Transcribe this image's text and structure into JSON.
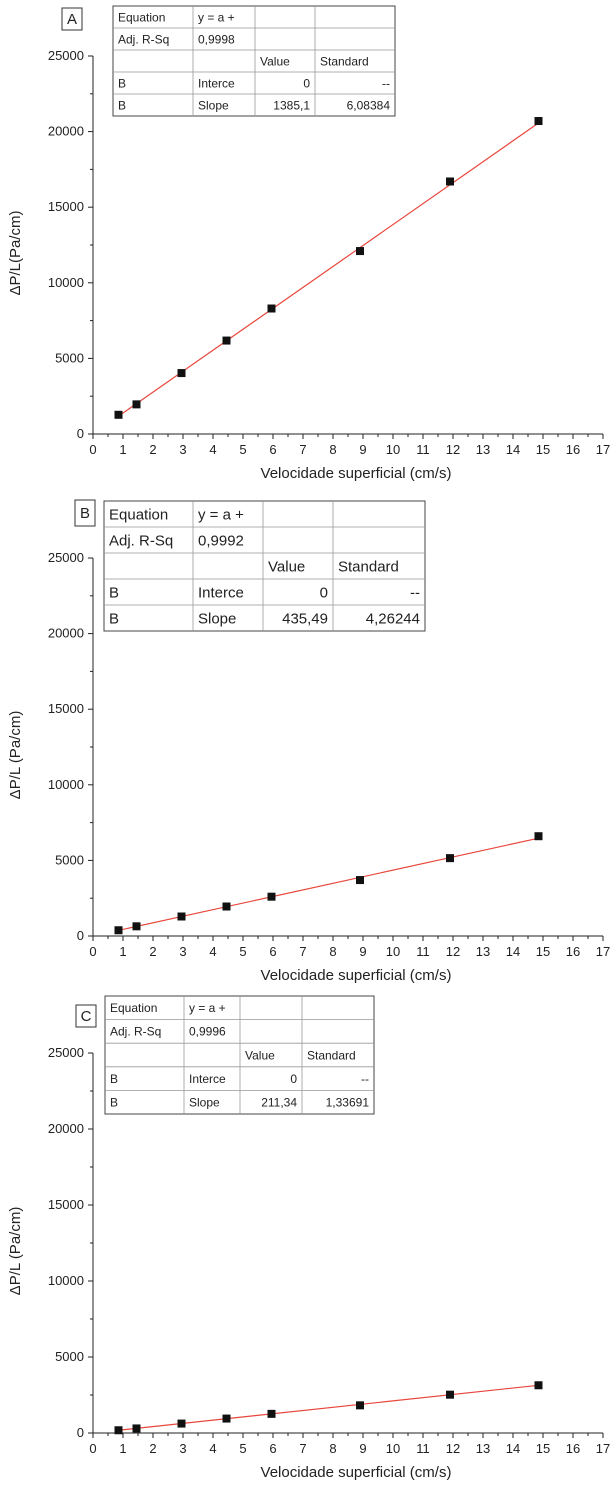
{
  "chart_data": [
    {
      "type": "scatter",
      "panel_label": "A",
      "x": [
        0.85,
        1.45,
        2.95,
        4.45,
        5.95,
        8.9,
        11.9,
        14.85
      ],
      "y": [
        1270,
        1960,
        4030,
        6180,
        8300,
        12100,
        16700,
        20700
      ],
      "fit": {
        "intercept": 0,
        "slope": 1385.1
      },
      "xlabel": "Velocidade superficial (cm/s)",
      "ylabel": "ΔP/L(Pa/cm)",
      "xlim": [
        0,
        17
      ],
      "ylim": [
        0,
        25000
      ],
      "xticks": [
        "0",
        "1",
        "2",
        "3",
        "4",
        "5",
        "6",
        "7",
        "8",
        "9",
        "10",
        "11",
        "12",
        "13",
        "14",
        "15",
        "16",
        "17"
      ],
      "yticks": [
        "0",
        "5000",
        "10000",
        "15000",
        "20000",
        "25000"
      ],
      "marker_color": "#111111",
      "fit_color": "#e8463c",
      "grid": false,
      "fit_table": [
        [
          "Equation",
          "y = a +",
          "",
          ""
        ],
        [
          "Adj. R-Sq",
          "0,9998",
          "",
          ""
        ],
        [
          "",
          "",
          "Value",
          "Standard"
        ],
        [
          "B",
          "Interce",
          "0",
          "--"
        ],
        [
          "B",
          "Slope",
          "1385,1",
          "6,08384"
        ]
      ]
    },
    {
      "type": "scatter",
      "panel_label": "B",
      "x": [
        0.85,
        1.45,
        2.95,
        4.45,
        5.95,
        8.9,
        11.9,
        14.85
      ],
      "y": [
        380,
        640,
        1290,
        1950,
        2600,
        3700,
        5150,
        6600
      ],
      "fit": {
        "intercept": 0,
        "slope": 435.49
      },
      "xlabel": "Velocidade superficial (cm/s)",
      "ylabel": "ΔP/L (Pa/cm)",
      "xlim": [
        0,
        17
      ],
      "ylim": [
        0,
        25000
      ],
      "xticks": [
        "0",
        "1",
        "2",
        "3",
        "4",
        "5",
        "6",
        "7",
        "8",
        "9",
        "10",
        "11",
        "12",
        "13",
        "14",
        "15",
        "16",
        "17"
      ],
      "yticks": [
        "0",
        "5000",
        "10000",
        "15000",
        "20000",
        "25000"
      ],
      "marker_color": "#111111",
      "fit_color": "#e8463c",
      "grid": false,
      "fit_table": [
        [
          "Equation",
          "y = a +",
          "",
          ""
        ],
        [
          "Adj. R-Sq",
          "0,9992",
          "",
          ""
        ],
        [
          "",
          "",
          "Value",
          "Standard"
        ],
        [
          "B",
          "Interce",
          "0",
          "--"
        ],
        [
          "B",
          "Slope",
          "435,49",
          "4,26244"
        ]
      ]
    },
    {
      "type": "scatter",
      "panel_label": "C",
      "x": [
        0.85,
        1.45,
        2.95,
        4.45,
        5.95,
        8.9,
        11.9,
        14.85
      ],
      "y": [
        180,
        300,
        620,
        950,
        1260,
        1820,
        2520,
        3140
      ],
      "fit": {
        "intercept": 0,
        "slope": 211.34
      },
      "xlabel": "Velocidade superficial (cm/s)",
      "ylabel": "ΔP/L (Pa/cm)",
      "xlim": [
        0,
        17
      ],
      "ylim": [
        0,
        25000
      ],
      "xticks": [
        "0",
        "1",
        "2",
        "3",
        "4",
        "5",
        "6",
        "7",
        "8",
        "9",
        "10",
        "11",
        "12",
        "13",
        "14",
        "15",
        "16",
        "17"
      ],
      "yticks": [
        "0",
        "5000",
        "10000",
        "15000",
        "20000",
        "25000"
      ],
      "marker_color": "#111111",
      "fit_color": "#e8463c",
      "grid": false,
      "fit_table": [
        [
          "Equation",
          "y = a +",
          "",
          ""
        ],
        [
          "Adj. R-Sq",
          "0,9996",
          "",
          ""
        ],
        [
          "",
          "",
          "Value",
          "Standard"
        ],
        [
          "B",
          "Interce",
          "0",
          "--"
        ],
        [
          "B",
          "Slope",
          "211,34",
          "1,33691"
        ]
      ]
    }
  ]
}
